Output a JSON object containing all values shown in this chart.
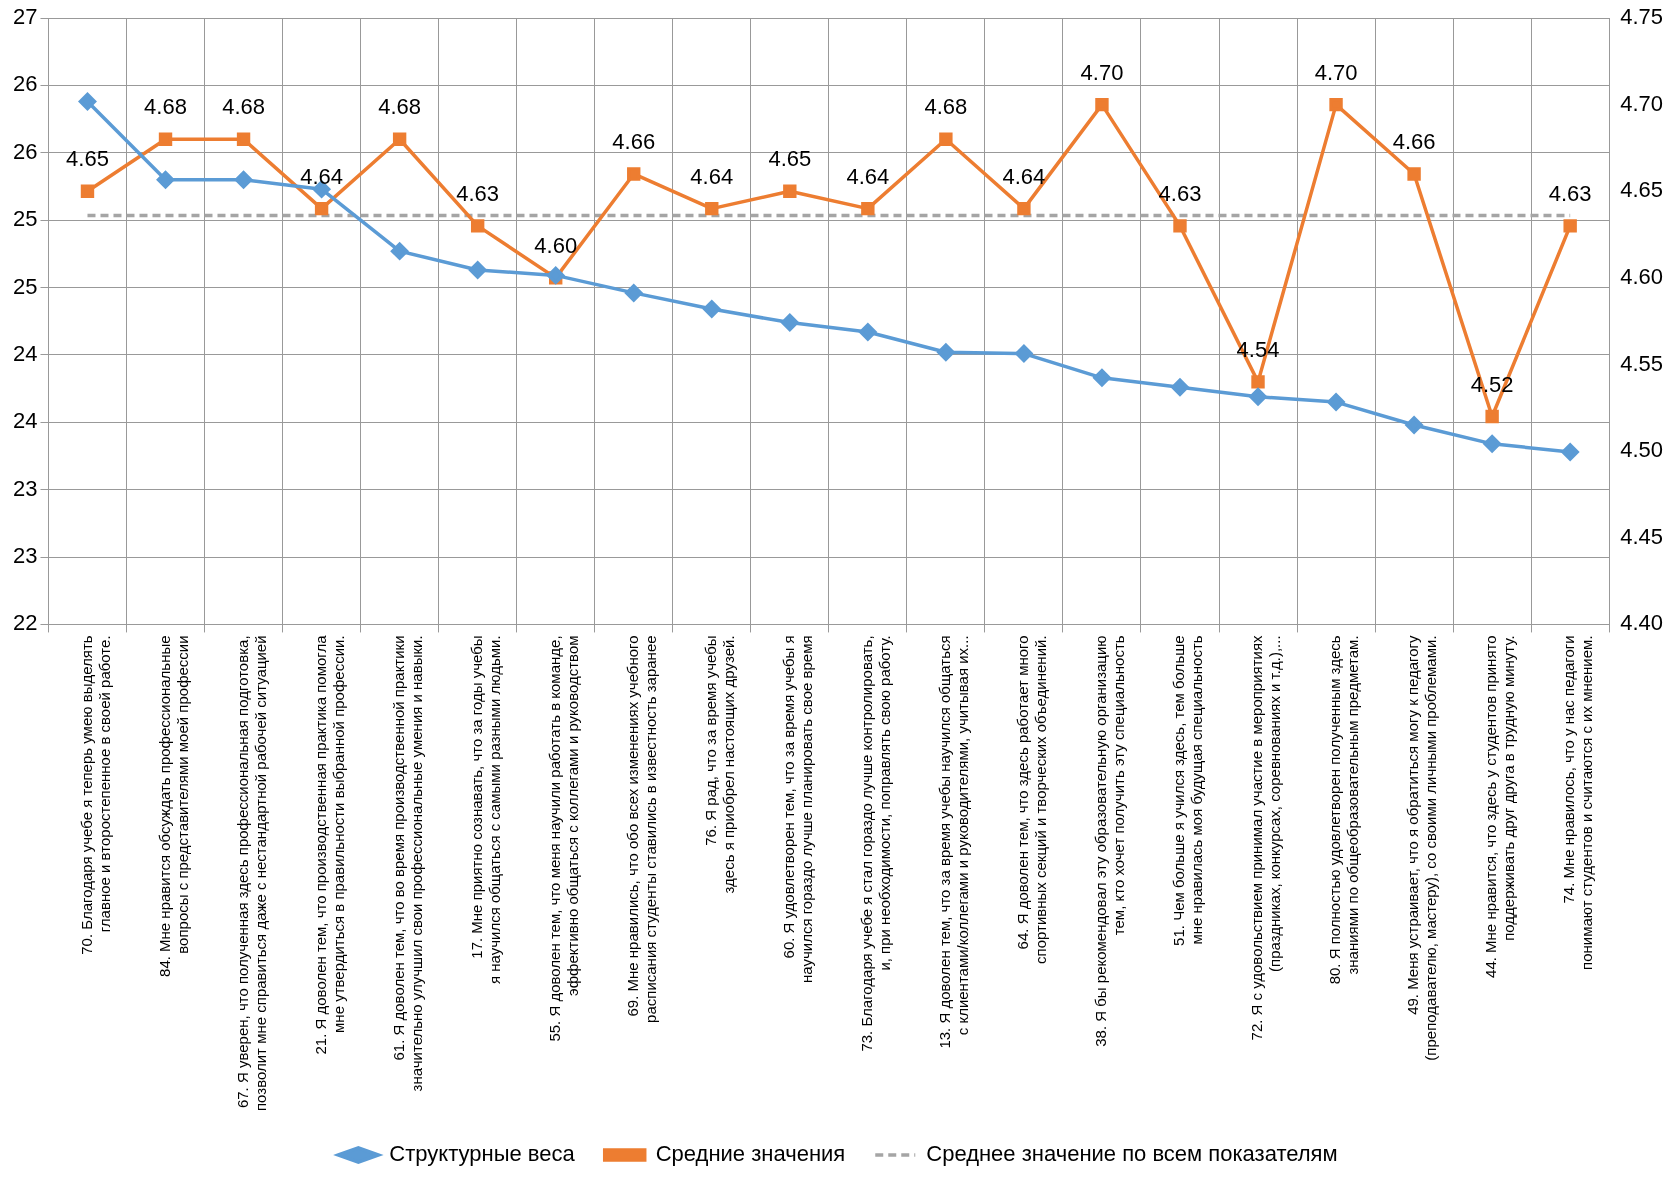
{
  "chart_data": {
    "type": "line",
    "categories": [
      "70. Благодаря учебе я теперь умею выделять главное и второстепенное в своей работе.",
      "84. Мне нравится обсуждать профессиональные вопросы с представителями моей профессии",
      "67. Я уверен, что полученная здесь профессиональная подготовка, позволит мне справиться даже с нестандартной рабочей ситуацией",
      "21. Я доволен тем, что производственная практика помогла мне утвердиться в правильности выбранной профессии.",
      "61. Я доволен тем, что во время производственной практики значительно улучшил свои профессиональные умения и навыки.",
      "17. Мне приятно сознавать, что за годы учебы я научился общаться с самыми разными людьми.",
      "55. Я доволен тем, что меня научили работать в команде, эффективно общаться с коллегами и руководством",
      "69. Мне нравились, что обо всех изменениях учебного расписания студенты ставились в известность заранее",
      "76. Я рад, что за время учебы здесь я приобрел настоящих друзей.",
      "60. Я удовлетворен тем, что за время учебы я научился гораздо лучше планировать свое время",
      "73. Благодаря учебе я стал гораздо лучше контролировать, и, при необходимости, поправлять свою работу.",
      "13. Я доволен тем, что за время учебы научился общаться с клиентами/коллегами и руководителями, учитывая их...",
      "64. Я доволен тем, что здесь работает много спортивных секций и творческих объединений.",
      "38. Я бы рекомендовал эту образовательную организацию тем, кто хочет получить эту специальность",
      "51. Чем больше я учился здесь, тем больше мне нравилась моя будущая специальность",
      "72. Я с удовольствием принимал участие в мероприятиях (праздниках, конкурсах, соревнованиях и т.д.),...",
      "80. Я полностью удовлетворен полученным здесь знаниями по общеобразовательным предметам.",
      "49. Меня устраивает, что я обратиться могу к педагогу (преподавателю, мастеру), со своими личными проблемами.",
      "44. Мне нравится, что здесь у студентов принято поддерживать друг друга в трудную минуту.",
      "74. Мне нравилось, что у нас педагоги понимают студентов и считаются с их мнением."
    ],
    "series": [
      {
        "name": "Структурные веса",
        "color": "#5b9bd5",
        "marker": "diamond",
        "values": [
          25.88,
          25.3,
          25.3,
          25.23,
          24.77,
          24.63,
          24.59,
          24.46,
          24.34,
          24.24,
          24.17,
          24.02,
          24.01,
          23.83,
          23.76,
          23.69,
          23.65,
          23.48,
          23.34,
          23.28
        ]
      },
      {
        "name": "Средние значения",
        "color": "#ed7d31",
        "marker": "square",
        "axis": "y2",
        "values": [
          4.65,
          4.68,
          4.68,
          4.64,
          4.68,
          4.63,
          4.6,
          4.66,
          4.64,
          4.65,
          4.64,
          4.68,
          4.64,
          4.7,
          4.63,
          4.54,
          4.7,
          4.66,
          4.52,
          4.63
        ],
        "value_labels": [
          "4.65",
          "4.68",
          "4.68",
          "4.64",
          "4.68",
          "4.63",
          "4.60",
          "4.66",
          "4.64",
          "4.65",
          "4.64",
          "4.68",
          "4.64",
          "4.70",
          "4.63",
          "4.54",
          "4.70",
          "4.66",
          "4.52",
          "4.63"
        ]
      }
    ],
    "ref_lines": [
      {
        "axis": "y2",
        "value": 4.636,
        "label": "Среднее значение по всем показателям",
        "color": "#a5a5a5",
        "line_style": "dashed"
      }
    ],
    "ylim": [
      22,
      26.5
    ],
    "yticks": [
      {
        "value": 22,
        "label": "22"
      },
      {
        "value": 22.5,
        "label": "23"
      },
      {
        "value": 23,
        "label": "23"
      },
      {
        "value": 23.5,
        "label": "24"
      },
      {
        "value": 24,
        "label": "24"
      },
      {
        "value": 24.5,
        "label": "25"
      },
      {
        "value": 25,
        "label": "25"
      },
      {
        "value": 25.5,
        "label": "26"
      },
      {
        "value": 26,
        "label": "26"
      },
      {
        "value": 26.5,
        "label": "27"
      }
    ],
    "y2lim": [
      4.4,
      4.75
    ],
    "y2ticks": [
      {
        "value": 4.4,
        "label": "4.40"
      },
      {
        "value": 4.45,
        "label": "4.45"
      },
      {
        "value": 4.5,
        "label": "4.50"
      },
      {
        "value": 4.55,
        "label": "4.55"
      },
      {
        "value": 4.6,
        "label": "4.60"
      },
      {
        "value": 4.65,
        "label": "4.65"
      },
      {
        "value": 4.7,
        "label": "4.70"
      },
      {
        "value": 4.75,
        "label": "4.75"
      }
    ],
    "grid": true,
    "legend": "bottom",
    "line_style": "solid"
  }
}
